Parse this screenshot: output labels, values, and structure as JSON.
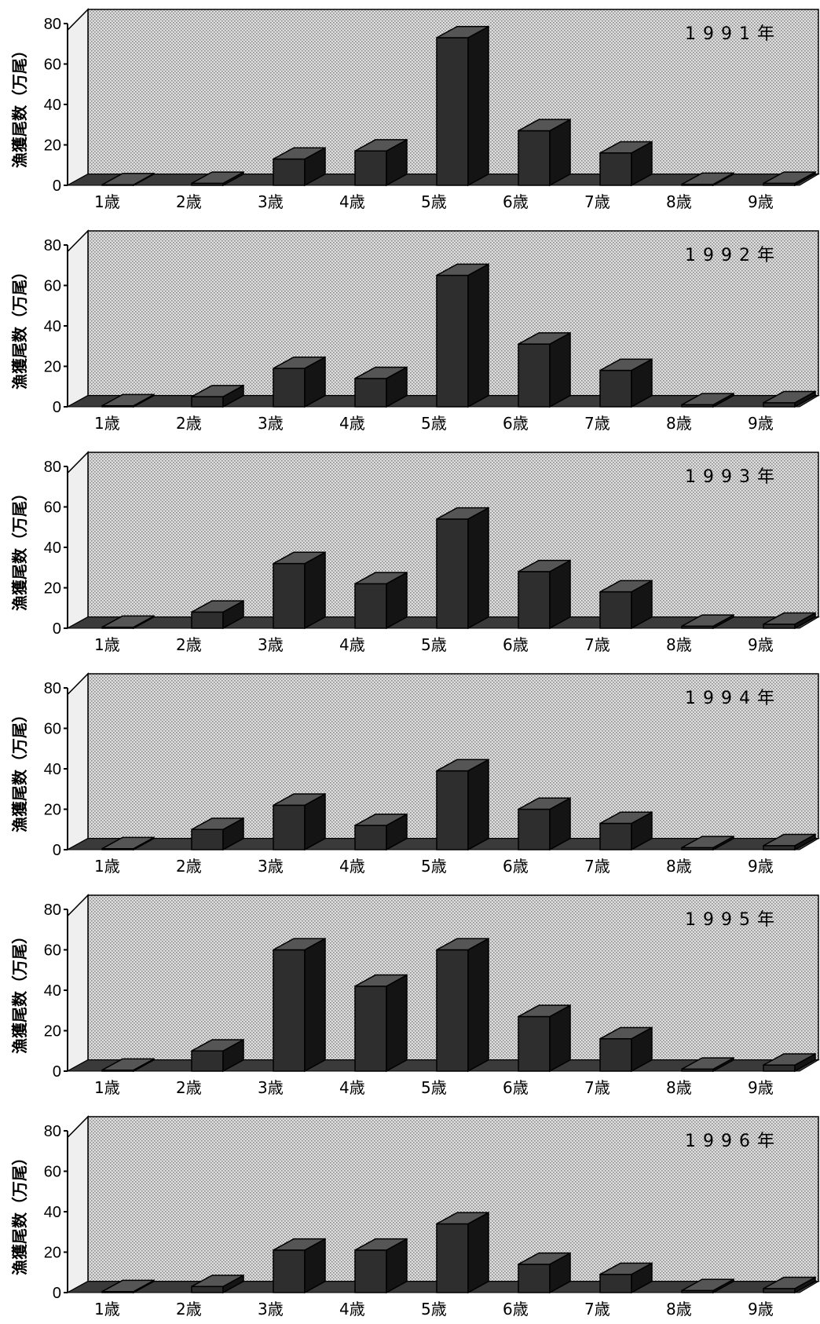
{
  "chart_data": [
    {
      "type": "bar",
      "title": "1991年",
      "categories": [
        "1歳",
        "2歳",
        "3歳",
        "4歳",
        "5歳",
        "6歳",
        "7歳",
        "8歳",
        "9歳"
      ],
      "values": [
        0,
        1,
        13,
        17,
        73,
        27,
        16,
        0.5,
        1
      ],
      "ylabel": "漁獲尾数（万尾）",
      "yticks": [
        "0",
        "20",
        "40",
        "60",
        "80"
      ],
      "ylim": [
        0,
        80
      ]
    },
    {
      "type": "bar",
      "title": "1992年",
      "categories": [
        "1歳",
        "2歳",
        "3歳",
        "4歳",
        "5歳",
        "6歳",
        "7歳",
        "8歳",
        "9歳"
      ],
      "values": [
        0.5,
        5,
        19,
        14,
        65,
        31,
        18,
        1,
        2
      ],
      "ylabel": "漁獲尾数（万尾）",
      "yticks": [
        "0",
        "20",
        "40",
        "60",
        "80"
      ],
      "ylim": [
        0,
        80
      ]
    },
    {
      "type": "bar",
      "title": "1993年",
      "categories": [
        "1歳",
        "2歳",
        "3歳",
        "4歳",
        "5歳",
        "6歳",
        "7歳",
        "8歳",
        "9歳"
      ],
      "values": [
        0.5,
        8,
        32,
        22,
        54,
        28,
        18,
        1,
        2
      ],
      "ylabel": "漁獲尾数（万尾）",
      "yticks": [
        "0",
        "20",
        "40",
        "60",
        "80"
      ],
      "ylim": [
        0,
        80
      ]
    },
    {
      "type": "bar",
      "title": "1994年",
      "categories": [
        "1歳",
        "2歳",
        "3歳",
        "4歳",
        "5歳",
        "6歳",
        "7歳",
        "8歳",
        "9歳"
      ],
      "values": [
        0.5,
        10,
        22,
        12,
        39,
        20,
        13,
        1,
        2
      ],
      "ylabel": "漁獲尾数（万尾）",
      "yticks": [
        "0",
        "20",
        "40",
        "60",
        "80"
      ],
      "ylim": [
        0,
        80
      ]
    },
    {
      "type": "bar",
      "title": "1995年",
      "categories": [
        "1歳",
        "2歳",
        "3歳",
        "4歳",
        "5歳",
        "6歳",
        "7歳",
        "8歳",
        "9歳"
      ],
      "values": [
        0.5,
        10,
        60,
        42,
        60,
        27,
        16,
        1,
        3
      ],
      "ylabel": "漁獲尾数（万尾）",
      "yticks": [
        "0",
        "20",
        "40",
        "60",
        "80"
      ],
      "ylim": [
        0,
        80
      ]
    },
    {
      "type": "bar",
      "title": "1996年",
      "categories": [
        "1歳",
        "2歳",
        "3歳",
        "4歳",
        "5歳",
        "6歳",
        "7歳",
        "8歳",
        "9歳"
      ],
      "values": [
        0.5,
        3,
        21,
        21,
        34,
        14,
        9,
        1,
        2
      ],
      "ylabel": "漁獲尾数（万尾）",
      "yticks": [
        "0",
        "20",
        "40",
        "60",
        "80"
      ],
      "ylim": [
        0,
        80
      ]
    }
  ],
  "colors": {
    "panel": "#c9c9c9",
    "floor": "#3a3a3a",
    "bar_front": "#2e2e2e",
    "bar_side": "#141414",
    "bar_top": "#555555"
  }
}
